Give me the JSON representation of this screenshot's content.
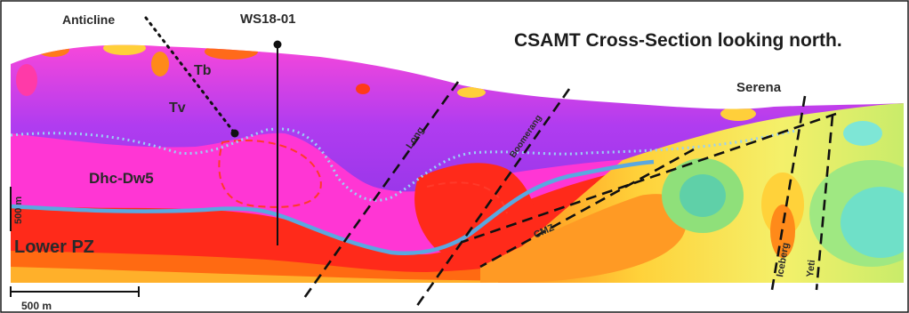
{
  "figure": {
    "title": "CSAMT Cross-Section looking north.",
    "drill_hole": "WS18-01",
    "feature_anticline": "Anticline",
    "deposit": "Serena",
    "units": {
      "tb": "Tb",
      "tv": "Tv",
      "dhc_dw5": "Dhc-Dw5",
      "lower_pz": "Lower PZ",
      "cmz": "CMZ"
    },
    "faults": {
      "long": "Long",
      "boomerang": "Boomerang",
      "iceberg": "Iceberg",
      "yeti": "Yeti"
    },
    "scale": {
      "horizontal": "500 m",
      "vertical": "500 m"
    },
    "colors": {
      "high_resistivity": "#7a2fe0",
      "mid_resistivity": "#ff2fd0",
      "low_resistivity": "#ff2a1a",
      "very_low": "#ffd23a",
      "contact_line": "#5aa8e0",
      "dotted_contact": "#9ad0f5"
    }
  }
}
